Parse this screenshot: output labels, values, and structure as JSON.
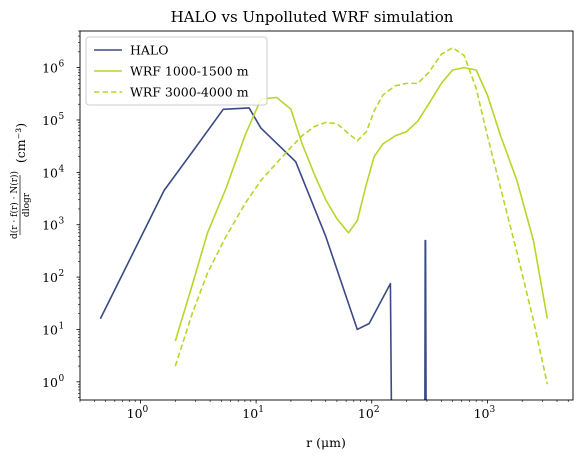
{
  "chart_data": {
    "type": "line",
    "title": "HALO vs Unpolluted WRF simulation",
    "xlabel": "r (μm)",
    "ylabel_fraction_num": "d(r · f(r) · N(r))",
    "ylabel_fraction_den": "dlogr",
    "ylabel_unit": "(cm⁻³)",
    "x_scale": "log",
    "y_scale": "log",
    "xlim": [
      0.3,
      5500
    ],
    "ylim": [
      0.45,
      5000000
    ],
    "x_ticks": [
      {
        "base": "10",
        "exp": "0",
        "value": 1
      },
      {
        "base": "10",
        "exp": "1",
        "value": 10
      },
      {
        "base": "10",
        "exp": "2",
        "value": 100
      },
      {
        "base": "10",
        "exp": "3",
        "value": 1000
      }
    ],
    "y_ticks": [
      {
        "base": "10",
        "exp": "0",
        "value": 1
      },
      {
        "base": "10",
        "exp": "1",
        "value": 10
      },
      {
        "base": "10",
        "exp": "2",
        "value": 100
      },
      {
        "base": "10",
        "exp": "3",
        "value": 1000
      },
      {
        "base": "10",
        "exp": "4",
        "value": 10000
      },
      {
        "base": "10",
        "exp": "5",
        "value": 100000
      },
      {
        "base": "10",
        "exp": "6",
        "value": 1000000
      }
    ],
    "grid": false,
    "legend_position": "top-left",
    "series": [
      {
        "name": "HALO",
        "color": "#3b4a86",
        "style": "solid",
        "x": [
          0.45,
          0.85,
          1.6,
          3.0,
          5.2,
          8.7,
          11,
          22,
          40,
          75,
          95,
          145,
          148
        ],
        "y": [
          16,
          270,
          4500,
          30000,
          160000,
          170000,
          70000,
          16000,
          600,
          10,
          13,
          75,
          0.3
        ]
      },
      {
        "name": "HALO",
        "color": "#3b4a86",
        "style": "solid",
        "x": [
          288,
          290,
          292,
          295
        ],
        "y": [
          0.3,
          500,
          500,
          0.3
        ]
      },
      {
        "name": "WRF 1000-1500 m",
        "color": "#b6d62a",
        "style": "solid",
        "x": [
          2.0,
          2.8,
          3.8,
          5.5,
          8.0,
          11,
          15,
          20,
          25,
          32,
          40,
          50,
          63,
          75,
          90,
          105,
          125,
          160,
          200,
          250,
          310,
          400,
          500,
          630,
          800,
          1000,
          1300,
          1800,
          2500,
          3300
        ],
        "y": [
          6,
          70,
          700,
          5000,
          50000,
          250000,
          270000,
          160000,
          35000,
          9000,
          3000,
          1300,
          700,
          1200,
          6000,
          20000,
          35000,
          50000,
          60000,
          95000,
          200000,
          500000,
          900000,
          1000000,
          900000,
          300000,
          50000,
          7000,
          500,
          16
        ]
      },
      {
        "name": "WRF 3000-4000 m",
        "color": "#b6d62a",
        "style": "dashed",
        "x": [
          2.0,
          2.8,
          3.8,
          5.5,
          8.0,
          11,
          15,
          20,
          25,
          32,
          40,
          50,
          63,
          75,
          90,
          105,
          125,
          160,
          200,
          250,
          310,
          400,
          500,
          630,
          800,
          1000,
          1300,
          1800,
          2500,
          3300
        ],
        "y": [
          2,
          20,
          120,
          600,
          2500,
          7000,
          15000,
          30000,
          50000,
          75000,
          90000,
          85000,
          55000,
          40000,
          60000,
          150000,
          300000,
          450000,
          500000,
          500000,
          800000,
          1800000,
          2400000,
          1700000,
          400000,
          50000,
          5000,
          300,
          15,
          0.9
        ]
      }
    ]
  }
}
